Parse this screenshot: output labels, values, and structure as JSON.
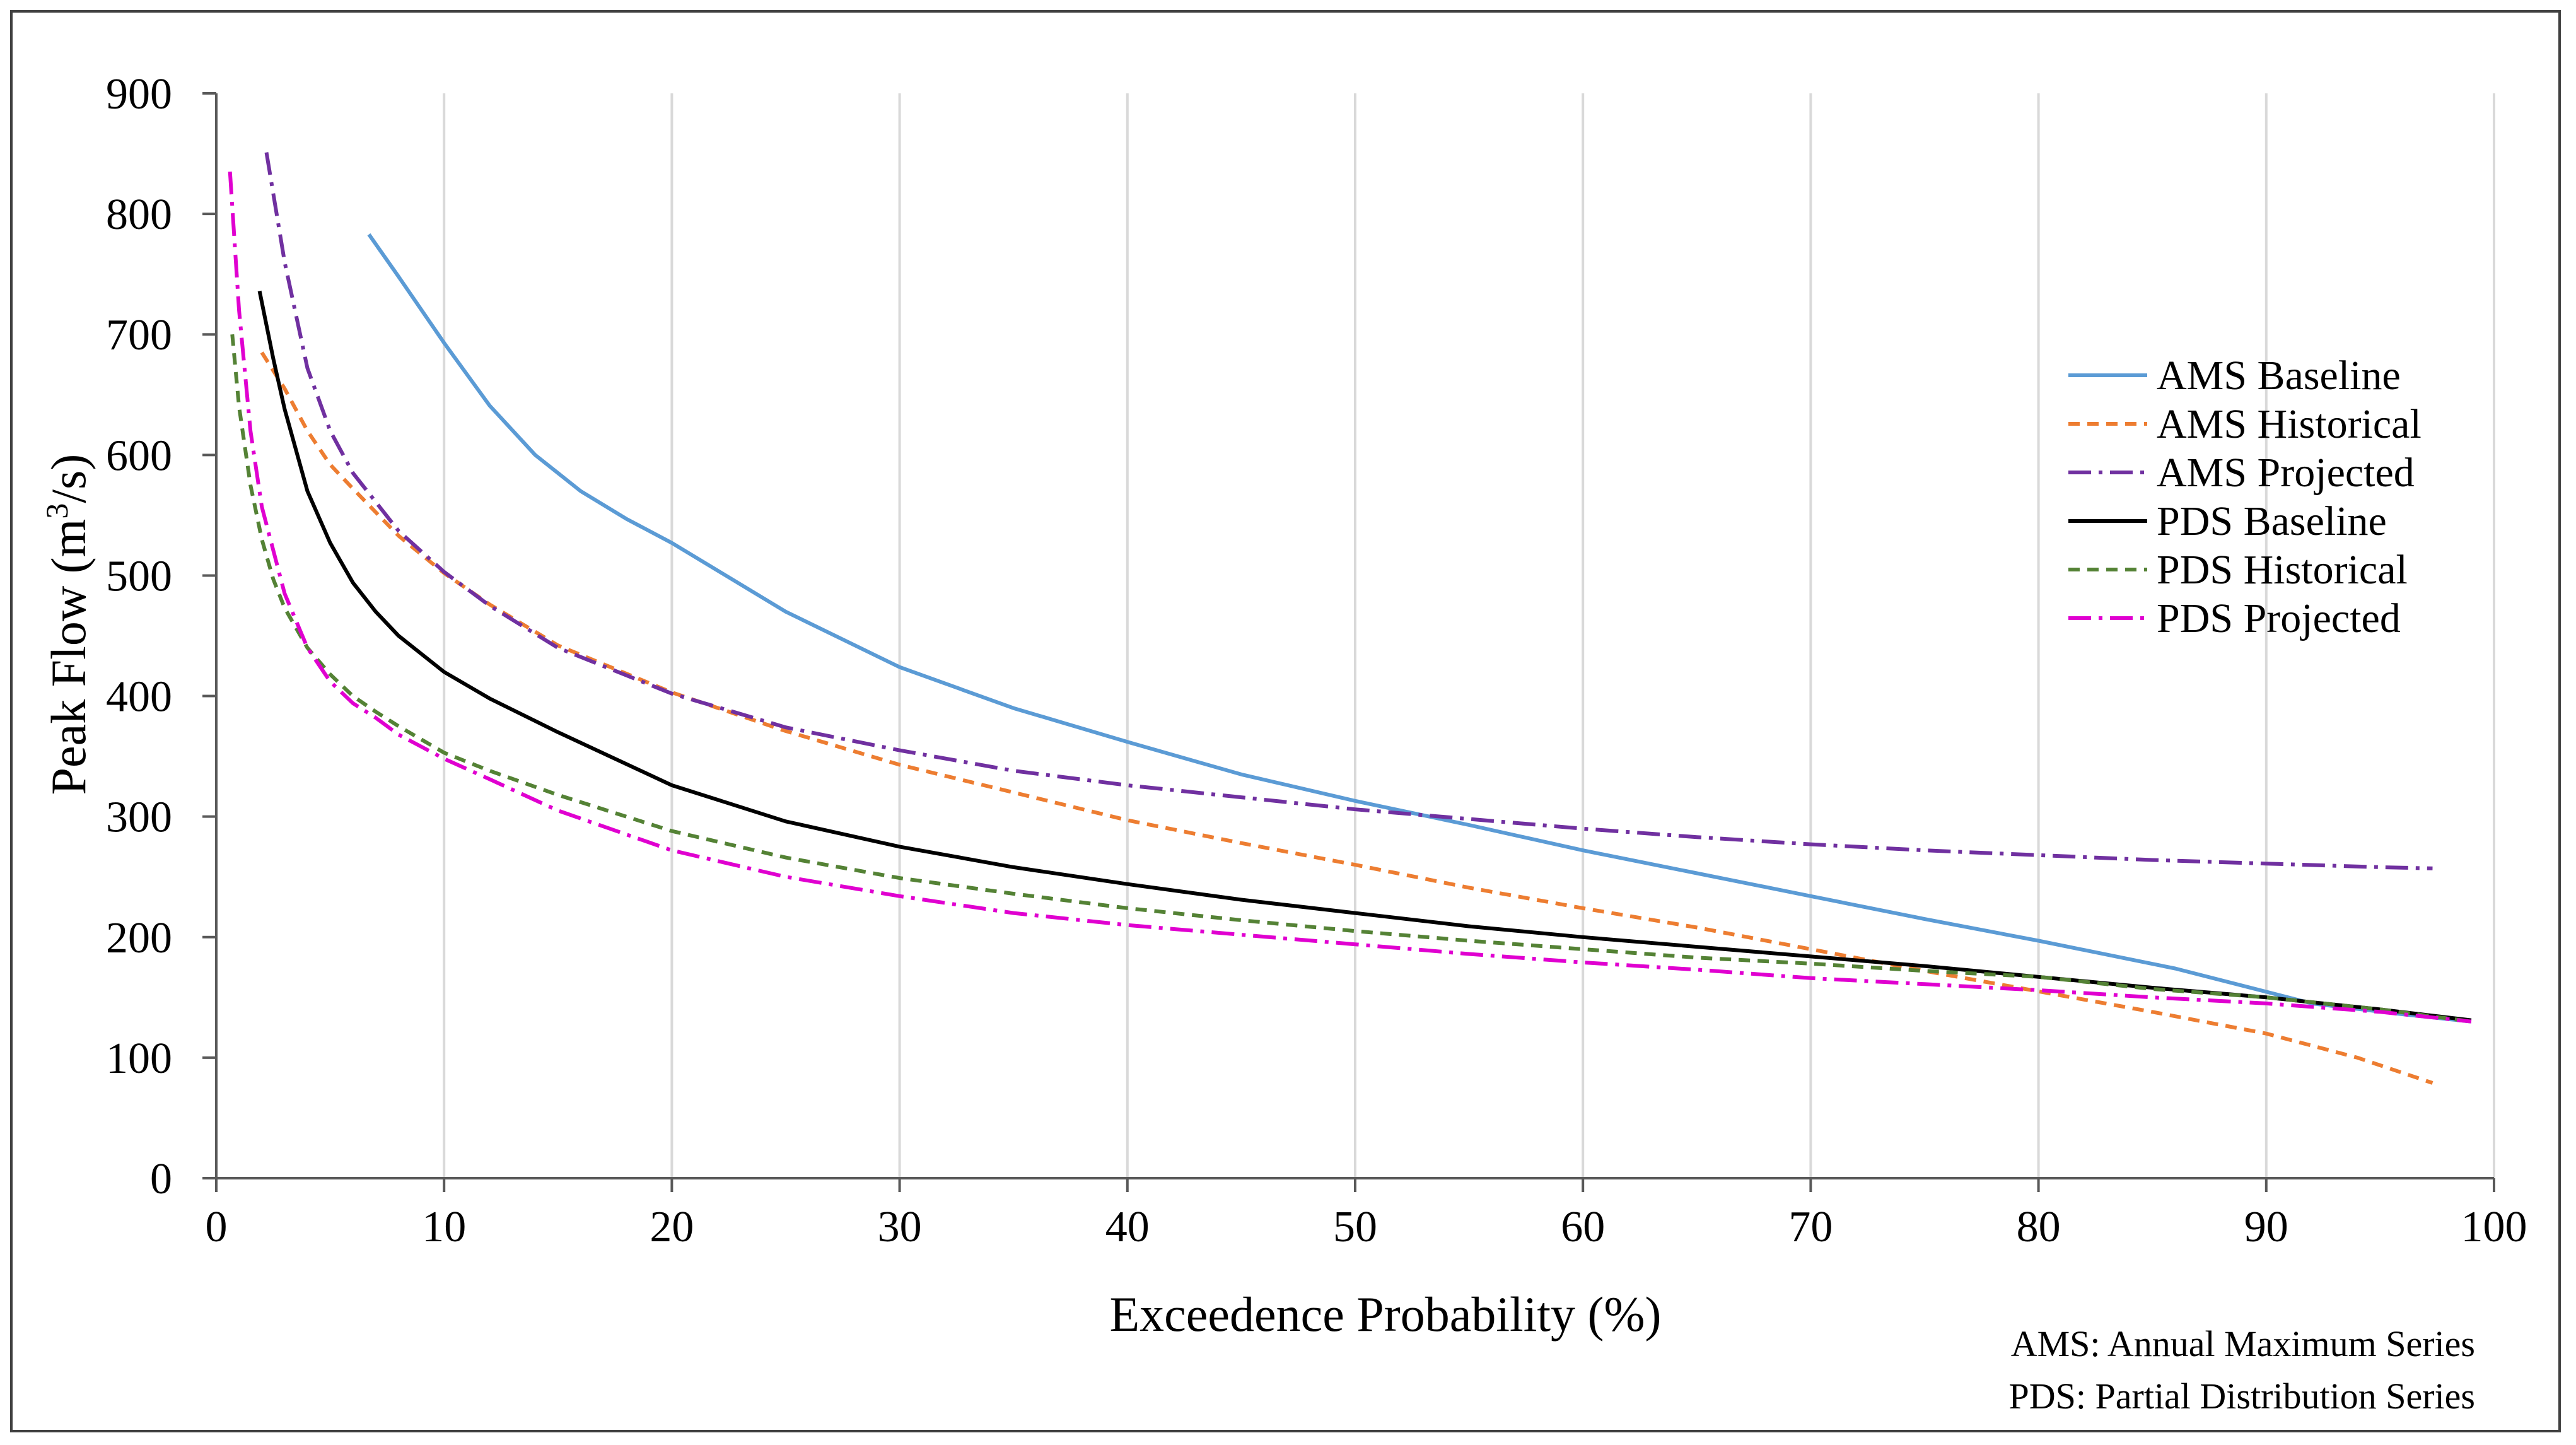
{
  "chart_data": {
    "type": "line",
    "title": "",
    "xlabel": "Exceedence Probability (%)",
    "ylabel_main": "Peak Flow (m",
    "ylabel_sup": "3",
    "ylabel_tail": "/s)",
    "xlim": [
      0,
      100
    ],
    "ylim": [
      0,
      900
    ],
    "x_ticks": [
      0,
      10,
      20,
      30,
      40,
      50,
      60,
      70,
      80,
      90,
      100
    ],
    "y_ticks": [
      0,
      100,
      200,
      300,
      400,
      500,
      600,
      700,
      800,
      900
    ],
    "grid": "vertical",
    "legend_position": "right",
    "series": [
      {
        "name": "AMS Baseline",
        "color": "#5B9BD5",
        "dash": "solid",
        "x": [
          6.7,
          8,
          10,
          12,
          14,
          16,
          18,
          20,
          25,
          30,
          35,
          40,
          45,
          50,
          55,
          60,
          65,
          70,
          75,
          80,
          86,
          92,
          96,
          99
        ],
        "y": [
          783,
          748,
          693,
          641,
          600,
          570,
          547,
          527,
          470,
          424,
          390,
          362,
          335,
          313,
          293,
          272,
          253,
          234,
          215,
          197,
          174,
          145,
          136,
          130
        ]
      },
      {
        "name": "AMS Historical",
        "color": "#ED7D31",
        "dash": "dashed",
        "x": [
          2,
          3,
          4,
          5,
          6,
          8,
          10,
          12,
          15,
          20,
          25,
          30,
          35,
          40,
          45,
          50,
          55,
          60,
          65,
          70,
          75,
          80,
          85,
          90,
          94,
          97.3
        ],
        "y": [
          685,
          655,
          620,
          592,
          572,
          533,
          502,
          476,
          442,
          403,
          371,
          343,
          320,
          297,
          278,
          260,
          241,
          224,
          208,
          190,
          172,
          155,
          138,
          120,
          100,
          79
        ]
      },
      {
        "name": "AMS Projected",
        "color": "#7030A0",
        "dash": "dashdot",
        "x": [
          2.2,
          3,
          4,
          5,
          6,
          8,
          10,
          12,
          15,
          20,
          25,
          30,
          35,
          40,
          45,
          50,
          55,
          60,
          65,
          70,
          75,
          80,
          85,
          90,
          95,
          97.3
        ],
        "y": [
          851,
          760,
          672,
          620,
          585,
          537,
          503,
          475,
          440,
          402,
          374,
          355,
          338,
          326,
          316,
          306,
          298,
          290,
          283,
          277,
          272,
          268,
          264,
          261,
          258,
          257
        ]
      },
      {
        "name": "PDS Baseline",
        "color": "#000000",
        "dash": "solid",
        "x": [
          1.9,
          2.5,
          3,
          4,
          5,
          6,
          7,
          8,
          10,
          12,
          15,
          20,
          25,
          30,
          35,
          40,
          45,
          50,
          55,
          60,
          65,
          70,
          75,
          80,
          85,
          90,
          95,
          99
        ],
        "y": [
          736,
          680,
          638,
          570,
          527,
          494,
          470,
          450,
          420,
          398,
          370,
          326,
          296,
          275,
          258,
          244,
          231,
          220,
          209,
          200,
          192,
          184,
          176,
          167,
          158,
          150,
          140,
          131
        ]
      },
      {
        "name": "PDS Historical",
        "color": "#548235",
        "dash": "dashed",
        "x": [
          0.7,
          1,
          1.5,
          2,
          2.5,
          3,
          4,
          5,
          6,
          7,
          8,
          10,
          12,
          15,
          20,
          25,
          30,
          35,
          40,
          45,
          50,
          55,
          60,
          65,
          70,
          75,
          80,
          85,
          90,
          95,
          99
        ],
        "y": [
          700,
          640,
          575,
          530,
          497,
          473,
          440,
          418,
          400,
          387,
          375,
          353,
          338,
          318,
          288,
          266,
          249,
          236,
          224,
          214,
          205,
          197,
          190,
          183,
          178,
          172,
          167,
          157,
          150,
          140,
          130
        ]
      },
      {
        "name": "PDS Projected",
        "color": "#E000D0",
        "dash": "dashdot",
        "x": [
          0.6,
          1,
          1.5,
          2,
          3,
          4,
          5,
          6,
          7,
          8,
          10,
          12,
          15,
          20,
          25,
          30,
          35,
          40,
          45,
          50,
          55,
          60,
          65,
          70,
          75,
          80,
          85,
          90,
          95,
          99
        ],
        "y": [
          835,
          720,
          620,
          557,
          485,
          440,
          412,
          394,
          382,
          368,
          348,
          331,
          305,
          272,
          250,
          234,
          220,
          210,
          202,
          194,
          186,
          179,
          173,
          166,
          161,
          156,
          150,
          145,
          138,
          130
        ]
      }
    ],
    "footnotes": [
      "AMS: Annual Maximum Series",
      "PDS: Partial Distribution Series"
    ]
  }
}
